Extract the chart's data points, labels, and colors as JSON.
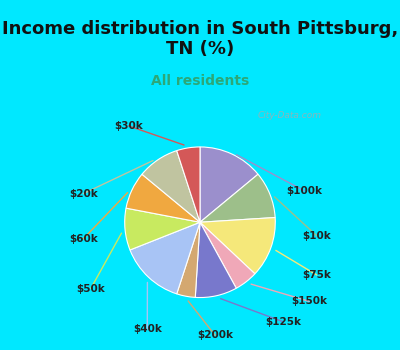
{
  "title": "Income distribution in South Pittsburg,\nTN (%)",
  "subtitle": "All residents",
  "labels": [
    "$100k",
    "$10k",
    "$75k",
    "$150k",
    "$125k",
    "$200k",
    "$40k",
    "$50k",
    "$60k",
    "$20k",
    "$30k"
  ],
  "values": [
    14,
    10,
    13,
    5,
    9,
    4,
    14,
    9,
    8,
    9,
    5
  ],
  "colors": [
    "#9b8fcc",
    "#9dbf8a",
    "#f5e87a",
    "#f0a8b8",
    "#7878cc",
    "#d4a870",
    "#a8c4f5",
    "#c8ea60",
    "#f0a840",
    "#c0c4a0",
    "#d45858"
  ],
  "line_colors": [
    "#9b8fcc",
    "#9dbf8a",
    "#f5e87a",
    "#f0a8b8",
    "#7878cc",
    "#d4a870",
    "#a8c4f5",
    "#c8ea60",
    "#f0a840",
    "#c0c4a0",
    "#d45858"
  ],
  "title_bg": "#00e8ff",
  "chart_bg_color": "#d8f0e8",
  "watermark": "City-Data.com",
  "startangle": 90,
  "title_fontsize": 13,
  "subtitle_fontsize": 10,
  "label_fontsize": 7.5
}
